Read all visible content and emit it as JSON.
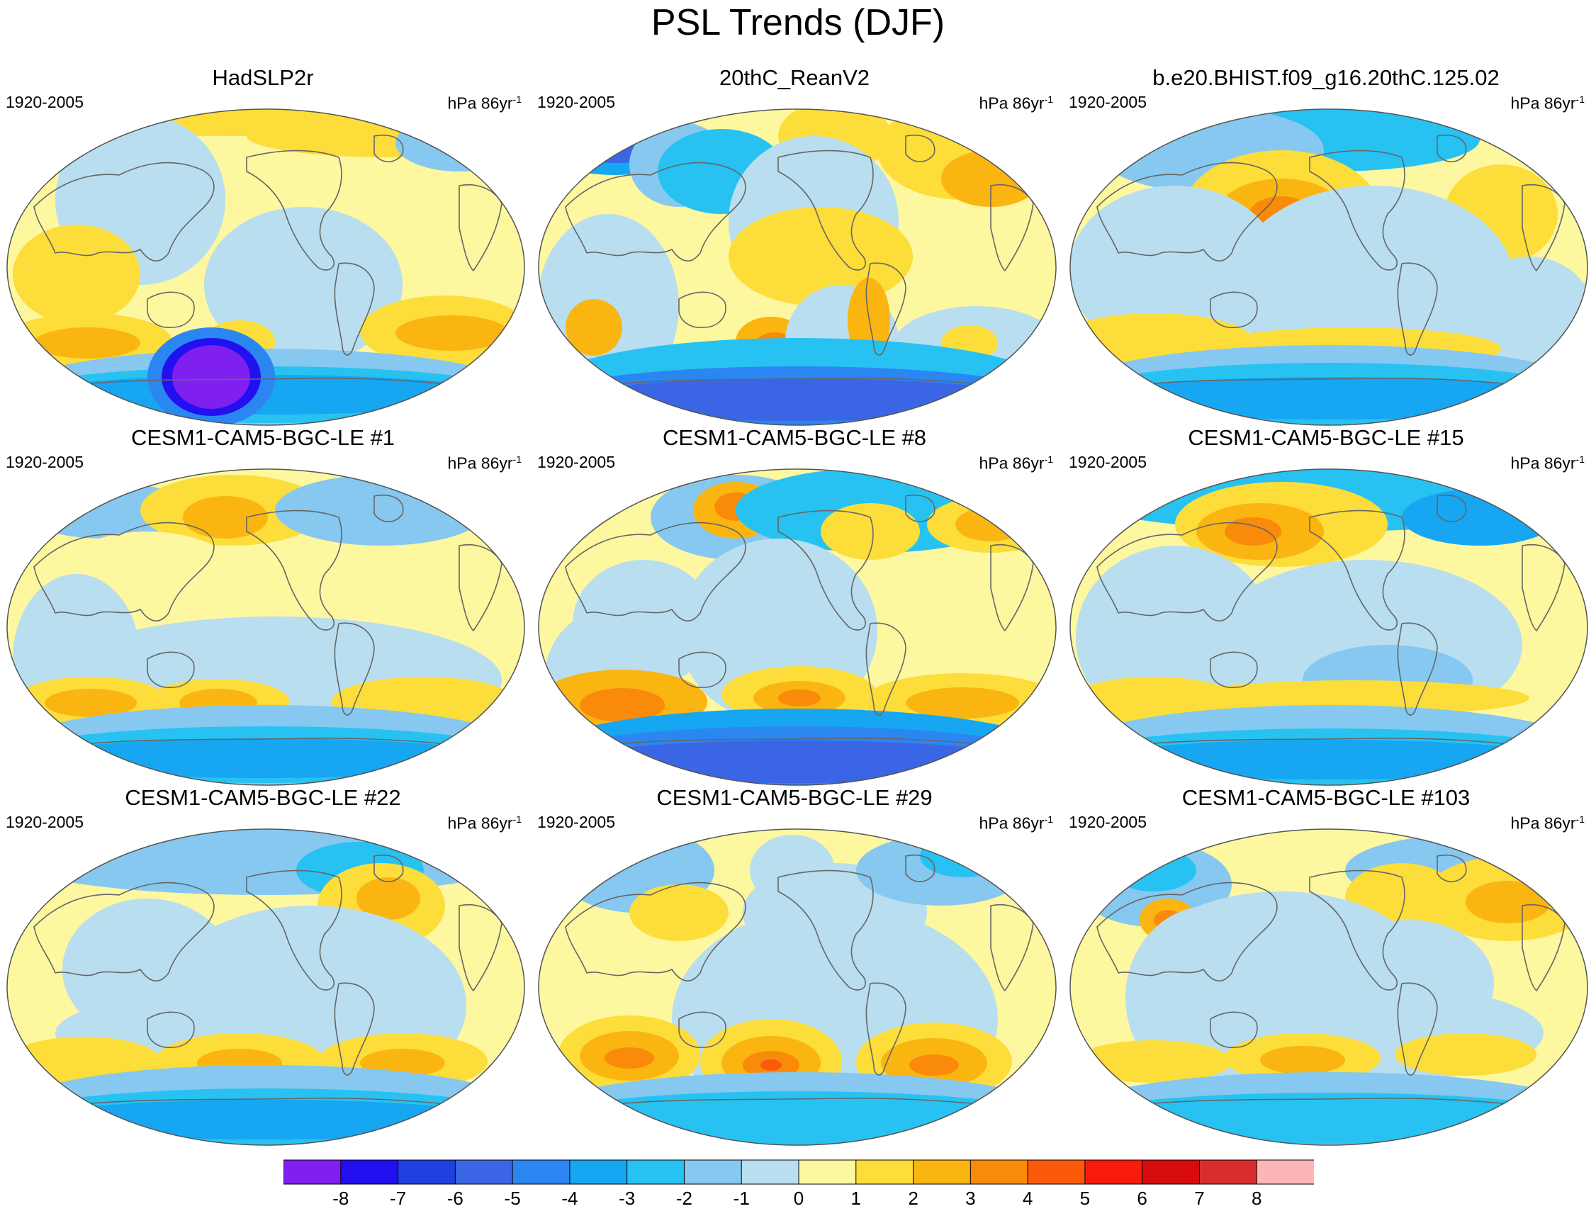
{
  "figure": {
    "title": "PSL Trends (DJF)",
    "period": "1920-2005",
    "units_base": "hPa 86yr",
    "units_exp": "-1"
  },
  "panels": [
    {
      "title": "HadSLP2r"
    },
    {
      "title": "20thC_ReanV2"
    },
    {
      "title": "b.e20.BHIST.f09_g16.20thC.125.02"
    },
    {
      "title": "CESM1-CAM5-BGC-LE #1"
    },
    {
      "title": "CESM1-CAM5-BGC-LE #8"
    },
    {
      "title": "CESM1-CAM5-BGC-LE #15"
    },
    {
      "title": "CESM1-CAM5-BGC-LE #22"
    },
    {
      "title": "CESM1-CAM5-BGC-LE #29"
    },
    {
      "title": "CESM1-CAM5-BGC-LE #103"
    }
  ],
  "colorbar": {
    "labels": [
      "-8",
      "-7",
      "-6",
      "-5",
      "-4",
      "-3",
      "-2",
      "-1",
      "0",
      "1",
      "2",
      "3",
      "4",
      "5",
      "6",
      "7",
      "8"
    ],
    "colors": [
      "#7f1ff0",
      "#2210f0",
      "#2040e0",
      "#3a66e6",
      "#2b86f2",
      "#17a6f2",
      "#27c2f2",
      "#86c8ef",
      "#b8def0",
      "#fdf7a0",
      "#fcdd3a",
      "#fbb511",
      "#fa8a0a",
      "#fa5a0a",
      "#f81a0a",
      "#d80c0c",
      "#d82d2d",
      "#fdb6b6"
    ]
  }
}
